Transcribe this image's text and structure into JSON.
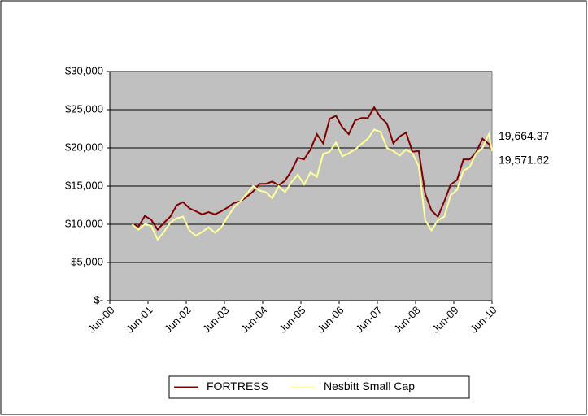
{
  "chart_data": {
    "type": "line",
    "x": [
      "2001-01",
      "2001-03",
      "2001-05",
      "2001-07",
      "2001-09",
      "2001-11",
      "2002-01",
      "2002-03",
      "2002-05",
      "2002-07",
      "2002-09",
      "2002-11",
      "2003-01",
      "2003-03",
      "2003-05",
      "2003-07",
      "2003-09",
      "2003-11",
      "2004-01",
      "2004-03",
      "2004-05",
      "2004-07",
      "2004-09",
      "2004-11",
      "2005-01",
      "2005-03",
      "2005-05",
      "2005-07",
      "2005-09",
      "2005-11",
      "2006-01",
      "2006-03",
      "2006-05",
      "2006-07",
      "2006-09",
      "2006-11",
      "2007-01",
      "2007-03",
      "2007-05",
      "2007-07",
      "2007-09",
      "2007-11",
      "2008-01",
      "2008-03",
      "2008-05",
      "2008-07",
      "2008-09",
      "2008-11",
      "2009-01",
      "2009-03",
      "2009-05",
      "2009-07",
      "2009-09",
      "2009-11",
      "2010-01",
      "2010-03",
      "2010-05",
      "2010-06"
    ],
    "series": [
      {
        "name": "FORTRESS",
        "color": "#800000",
        "values": [
          10000,
          9700,
          11100,
          10600,
          9300,
          10200,
          11000,
          12500,
          12900,
          12100,
          11700,
          11300,
          11600,
          11300,
          11700,
          12200,
          12800,
          13000,
          13600,
          14300,
          15300,
          15300,
          15600,
          15100,
          15700,
          17000,
          18700,
          18500,
          19800,
          21800,
          20600,
          23800,
          24200,
          22700,
          21800,
          23600,
          23900,
          23900,
          25300,
          24000,
          23200,
          20600,
          21500,
          22000,
          19500,
          19600,
          14000,
          11800,
          11000,
          13000,
          15200,
          15800,
          18500,
          18500,
          19400,
          21200,
          20500,
          19664.37
        ],
        "value_labels": [
          null,
          null,
          null,
          null,
          null,
          null,
          null,
          null,
          null,
          null,
          null,
          null,
          null,
          null,
          null,
          null,
          null,
          null,
          null,
          null,
          null,
          null,
          null,
          null,
          null,
          null,
          null,
          null,
          null,
          null,
          null,
          null,
          null,
          null,
          null,
          null,
          null,
          null,
          null,
          null,
          null,
          null,
          null,
          null,
          null,
          null,
          null,
          null,
          null,
          null,
          null,
          null,
          null,
          null,
          null,
          null,
          null,
          "19,664.37"
        ]
      },
      {
        "name": "Nesbitt Small Cap",
        "color": "#ffff99",
        "values": [
          10000,
          9300,
          10000,
          9800,
          8000,
          9000,
          10200,
          10800,
          11000,
          9200,
          8500,
          9000,
          9600,
          8900,
          9600,
          11000,
          12200,
          13000,
          14000,
          15000,
          14400,
          14200,
          13400,
          15000,
          14200,
          15500,
          16500,
          15200,
          16800,
          16200,
          19200,
          19500,
          20700,
          18900,
          19300,
          19800,
          20500,
          21200,
          22400,
          22100,
          20000,
          19600,
          19000,
          19800,
          19300,
          17600,
          10500,
          9200,
          10500,
          11000,
          13800,
          14500,
          17000,
          17500,
          19300,
          20000,
          21800,
          19571.62
        ],
        "value_labels": [
          null,
          null,
          null,
          null,
          null,
          null,
          null,
          null,
          null,
          null,
          null,
          null,
          null,
          null,
          null,
          null,
          null,
          null,
          null,
          null,
          null,
          null,
          null,
          null,
          null,
          null,
          null,
          null,
          null,
          null,
          null,
          null,
          null,
          null,
          null,
          null,
          null,
          null,
          null,
          null,
          null,
          null,
          null,
          null,
          null,
          null,
          null,
          null,
          null,
          null,
          null,
          null,
          null,
          null,
          null,
          null,
          null,
          "19,571.62"
        ]
      }
    ],
    "xlim": [
      "2000-06",
      "2010-06"
    ],
    "xticks": [
      {
        "value": "2000-06",
        "label": "Jun-00"
      },
      {
        "value": "2001-06",
        "label": "Jun-01"
      },
      {
        "value": "2002-06",
        "label": "Jun-02"
      },
      {
        "value": "2003-06",
        "label": "Jun-03"
      },
      {
        "value": "2004-06",
        "label": "Jun-04"
      },
      {
        "value": "2005-06",
        "label": "Jun-05"
      },
      {
        "value": "2006-06",
        "label": "Jun-06"
      },
      {
        "value": "2007-06",
        "label": "Jun-07"
      },
      {
        "value": "2008-06",
        "label": "Jun-08"
      },
      {
        "value": "2009-06",
        "label": "Jun-09"
      },
      {
        "value": "2010-06",
        "label": "Jun-10"
      }
    ],
    "ylim": [
      0,
      30000
    ],
    "yticks": [
      {
        "value": 0,
        "label": "$-"
      },
      {
        "value": 5000,
        "label": "$5,000"
      },
      {
        "value": 10000,
        "label": "$10,000"
      },
      {
        "value": 15000,
        "label": "$15,000"
      },
      {
        "value": 20000,
        "label": "$20,000"
      },
      {
        "value": 25000,
        "label": "$25,000"
      },
      {
        "value": 30000,
        "label": "$30,000"
      }
    ],
    "grid": true,
    "legend": "bottom",
    "plot_background": "#c0c0c0"
  }
}
